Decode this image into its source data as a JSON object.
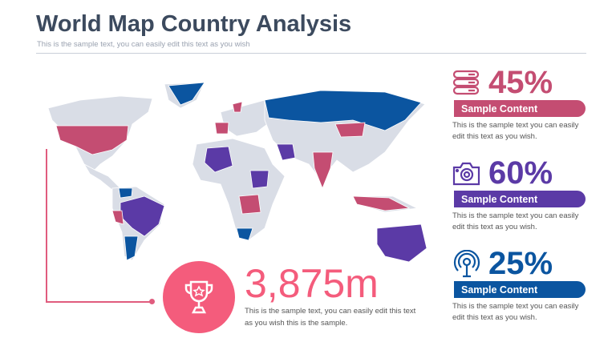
{
  "header": {
    "title": "World Map Country Analysis",
    "subtitle": "This is the sample text, you can easily edit this text as you wish"
  },
  "colors": {
    "pink": "#c44d72",
    "purple": "#5b3aa6",
    "blue": "#0b55a0",
    "land": "#d9dde6",
    "accent": "#f45c7c"
  },
  "highlight": {
    "value": "3,875m",
    "icon": "trophy-icon",
    "description": "This is the sample text, you can easily edit this text as you wish this is the sample."
  },
  "stats": [
    {
      "icon": "server-icon",
      "percent": "45%",
      "label": "Sample Content",
      "description": "This is the sample text you can easily edit this text as you wish.",
      "color": "#c44d72"
    },
    {
      "icon": "camera-icon",
      "percent": "60%",
      "label": "Sample Content",
      "description": "This is the sample text you can easily edit this text as you wish.",
      "color": "#5b3aa6"
    },
    {
      "icon": "broadcast-icon",
      "percent": "25%",
      "label": "Sample Content",
      "description": "This is the sample text you can easily edit this text as you wish.",
      "color": "#0b55a0"
    }
  ]
}
